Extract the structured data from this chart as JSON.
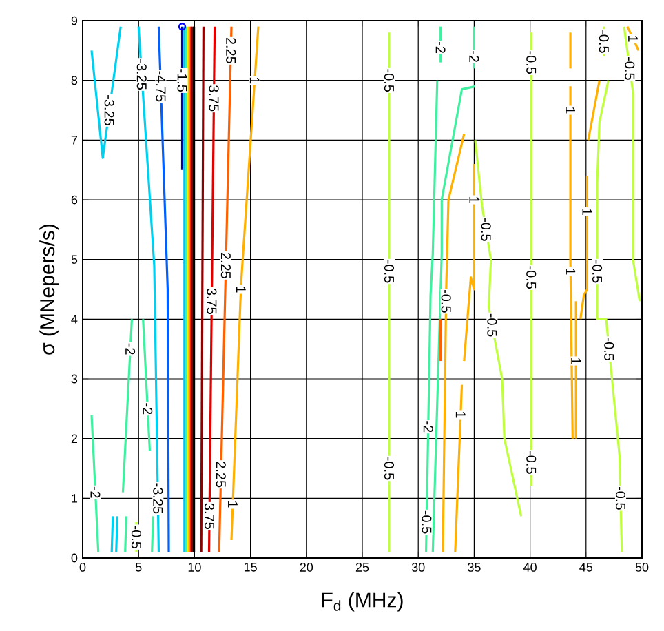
{
  "chart_data": {
    "type": "line",
    "xlabel": "F$_{d}$ (MHz)",
    "ylabel": "σ (MNepers/s)",
    "xlim": [
      0,
      50
    ],
    "ylim": [
      0,
      9
    ],
    "xticks": [
      0,
      5,
      10,
      15,
      20,
      25,
      30,
      35,
      40,
      45,
      50
    ],
    "yticks": [
      0,
      1,
      2,
      3,
      4,
      5,
      6,
      7,
      8,
      9
    ],
    "grid": true,
    "series": [
      {
        "color": "#00d0f0",
        "x": [
          0.8,
          1.8,
          3.4
        ],
        "values": [
          8.5,
          6.7,
          8.9
        ]
      },
      {
        "color": "#00d0f0",
        "x": [
          5.0,
          6.4,
          6.8
        ],
        "values": [
          8.9,
          4.9,
          0.1
        ]
      },
      {
        "color": "#0060ff",
        "x": [
          6.8,
          7.6,
          7.7
        ],
        "values": [
          8.9,
          4.5,
          0.1
        ]
      },
      {
        "color": "#0000c0",
        "x": [
          8.9,
          8.9
        ],
        "values": [
          8.9,
          6.5
        ]
      },
      {
        "color": "#00c0ff",
        "x": [
          9.1,
          9.1
        ],
        "values": [
          8.9,
          0.1
        ]
      },
      {
        "color": "#40f0a0",
        "x": [
          9.25,
          9.25
        ],
        "values": [
          8.9,
          0.1
        ]
      },
      {
        "color": "#f0f000",
        "x": [
          9.4,
          9.4
        ],
        "values": [
          8.9,
          0.1
        ]
      },
      {
        "color": "#ffa000",
        "x": [
          9.55,
          9.55
        ],
        "values": [
          8.9,
          0.1
        ]
      },
      {
        "color": "#ff2000",
        "x": [
          9.7,
          9.7
        ],
        "values": [
          8.9,
          0.1
        ]
      },
      {
        "color": "#900000",
        "x": [
          9.82,
          9.82
        ],
        "values": [
          8.9,
          0.1
        ]
      },
      {
        "color": "#000000",
        "x": [
          9.95,
          9.95
        ],
        "values": [
          8.9,
          0.1
        ]
      },
      {
        "color": "#900000",
        "x": [
          10.8,
          10.6
        ],
        "values": [
          8.9,
          0.1
        ]
      },
      {
        "color": "#e00000",
        "x": [
          11.8,
          11.3
        ],
        "values": [
          8.9,
          0.1
        ]
      },
      {
        "color": "#ff6000",
        "x": [
          13.3,
          12.2
        ],
        "values": [
          8.9,
          0.1
        ]
      },
      {
        "color": "#ffb000",
        "x": [
          15.7,
          14.2,
          14.1,
          13.3
        ],
        "values": [
          8.9,
          4.7,
          4.3,
          0.3
        ]
      },
      {
        "color": "#40f0a0",
        "x": [
          0.8,
          1.4
        ],
        "values": [
          2.4,
          0.1
        ]
      },
      {
        "color": "#40f0a0",
        "x": [
          4.4,
          3.6
        ],
        "values": [
          4.0,
          1.1
        ]
      },
      {
        "color": "#40f0a0",
        "x": [
          5.4,
          6.0
        ],
        "values": [
          4.0,
          1.8
        ]
      },
      {
        "color": "#00d0f0",
        "x": [
          2.7,
          2.6
        ],
        "values": [
          0.7,
          0.1
        ]
      },
      {
        "color": "#00d0f0",
        "x": [
          3.1,
          3.0
        ],
        "values": [
          0.7,
          0.1
        ]
      },
      {
        "color": "#40f0a0",
        "x": [
          3.9,
          3.8
        ],
        "values": [
          0.7,
          0.1
        ]
      },
      {
        "color": "#c0ff40",
        "x": [
          4.8,
          4.8
        ],
        "values": [
          0.6,
          0.1
        ]
      },
      {
        "color": "#40f0a0",
        "x": [
          6.3,
          6.2
        ],
        "values": [
          0.7,
          0.1
        ]
      },
      {
        "color": "#c0ff40",
        "x": [
          27.4,
          27.4
        ],
        "values": [
          8.8,
          0.1
        ]
      },
      {
        "color": "#40f0a0",
        "x": [
          32.0,
          32.0
        ],
        "values": [
          8.9,
          8.3
        ]
      },
      {
        "color": "#40f0a0",
        "x": [
          31.7,
          31.3,
          31.1,
          30.7
        ],
        "values": [
          8.0,
          5.1,
          4.4,
          0.1
        ]
      },
      {
        "color": "#40f0a0",
        "x": [
          35.0,
          35.0
        ],
        "values": [
          8.9,
          8.2
        ]
      },
      {
        "color": "#40f0a0",
        "x": [
          35.1,
          33.9,
          32.1,
          32.1,
          31.3
        ],
        "values": [
          7.9,
          7.85,
          6.0,
          5.1,
          0.1
        ]
      },
      {
        "color": "#ffb000",
        "x": [
          34.1,
          32.7,
          32.5,
          32.2
        ],
        "values": [
          7.1,
          6.0,
          4.5,
          0.1
        ]
      },
      {
        "color": "#c0ff40",
        "x": [
          35.1,
          35.7,
          36.5,
          36.3,
          37.5,
          37.7,
          39.2
        ],
        "values": [
          7.0,
          5.9,
          5.0,
          4.2,
          3.0,
          2.0,
          0.7
        ]
      },
      {
        "color": "#ffb000",
        "x": [
          35.0,
          35.0,
          34.7,
          34.1
        ],
        "values": [
          6.6,
          4.5,
          4.7,
          3.3
        ]
      },
      {
        "color": "#ffb000",
        "x": [
          33.9,
          33.3
        ],
        "values": [
          2.9,
          0.1
        ]
      },
      {
        "color": "#ff6000",
        "x": [
          32.0,
          32.0
        ],
        "values": [
          4.0,
          3.3
        ]
      },
      {
        "color": "#c0ff40",
        "x": [
          40.1,
          40.1
        ],
        "values": [
          8.8,
          1.2
        ]
      },
      {
        "color": "#ffb000",
        "x": [
          43.6,
          43.6
        ],
        "values": [
          8.8,
          8.2
        ]
      },
      {
        "color": "#ffb000",
        "x": [
          43.6,
          43.6,
          43.8
        ],
        "values": [
          7.9,
          5.0,
          2.0
        ]
      },
      {
        "color": "#ffb000",
        "x": [
          44.1,
          44.1
        ],
        "values": [
          4.3,
          2.0
        ]
      },
      {
        "color": "#c0ff40",
        "x": [
          46.6,
          46.6
        ],
        "values": [
          8.9,
          8.4
        ]
      },
      {
        "color": "#c0ff40",
        "x": [
          47.0,
          46.2,
          46.0,
          46.0,
          46.8,
          48.0,
          48.2
        ],
        "values": [
          8.0,
          7.3,
          6.3,
          4.0,
          4.0,
          1.7,
          0.1
        ]
      },
      {
        "color": "#ffb000",
        "x": [
          46.2,
          45.2
        ],
        "values": [
          8.0,
          7.0
        ]
      },
      {
        "color": "#ffb000",
        "x": [
          45.1,
          45.1,
          44.8,
          44.5
        ],
        "values": [
          6.4,
          4.5,
          4.4,
          4.0
        ]
      },
      {
        "color": "#c0ff40",
        "x": [
          48.4,
          49.2,
          49.2,
          49.8
        ],
        "values": [
          8.9,
          7.8,
          5.0,
          4.3
        ]
      },
      {
        "color": "#ffb000",
        "x": [
          48.7,
          49.7
        ],
        "values": [
          8.9,
          8.5
        ]
      },
      {
        "type": "scatter",
        "marker": "circle",
        "color": "#0000ff",
        "x": [
          8.9
        ],
        "values": [
          8.9
        ]
      }
    ],
    "annotations": [
      {
        "text": "-3.25",
        "x": 2.38,
        "y": 7.5
      },
      {
        "text": "-3.25",
        "x": 5.28,
        "y": 8.1
      },
      {
        "text": "-4.75",
        "x": 6.98,
        "y": 7.9
      },
      {
        "text": "-1.5",
        "x": 8.9,
        "y": 8.0
      },
      {
        "text": "3.75",
        "x": 11.73,
        "y": 7.7
      },
      {
        "text": "2.25",
        "x": 13.25,
        "y": 8.5
      },
      {
        "text": "2.25",
        "x": 12.8,
        "y": 4.9
      },
      {
        "text": "3.75",
        "x": 11.54,
        "y": 4.3
      },
      {
        "text": "2.25",
        "x": 12.36,
        "y": 1.4
      },
      {
        "text": "3.75",
        "x": 11.33,
        "y": 0.7
      },
      {
        "text": "1",
        "x": 13.42,
        "y": 0.9
      },
      {
        "text": "1",
        "x": 15.38,
        "y": 8.0
      },
      {
        "text": "1",
        "x": 14.15,
        "y": 4.5
      },
      {
        "text": "-2",
        "x": 1.14,
        "y": 1.1
      },
      {
        "text": "-2",
        "x": 5.81,
        "y": 2.5
      },
      {
        "text": "-2",
        "x": 4.26,
        "y": 3.5
      },
      {
        "text": "-3.25",
        "x": 6.73,
        "y": 1.0
      },
      {
        "text": "-0.5",
        "x": 4.8,
        "y": 0.35
      },
      {
        "text": "-0.5",
        "x": 27.4,
        "y": 8.0
      },
      {
        "text": "-0.5",
        "x": 27.4,
        "y": 4.8
      },
      {
        "text": "-0.5",
        "x": 27.4,
        "y": 1.5
      },
      {
        "text": "-2",
        "x": 32.0,
        "y": 8.55
      },
      {
        "text": "-2",
        "x": 35.0,
        "y": 8.4
      },
      {
        "text": "-0.5",
        "x": 36.06,
        "y": 5.5
      },
      {
        "text": "1",
        "x": 35.0,
        "y": 6.0
      },
      {
        "text": "-0.5",
        "x": 40.1,
        "y": 8.3
      },
      {
        "text": "-0.5",
        "x": 40.1,
        "y": 4.7
      },
      {
        "text": "-0.5",
        "x": 36.6,
        "y": 3.9
      },
      {
        "text": "-0.5",
        "x": 40.1,
        "y": 1.6
      },
      {
        "text": "1",
        "x": 43.6,
        "y": 7.5
      },
      {
        "text": "1",
        "x": 43.61,
        "y": 4.8
      },
      {
        "text": "1",
        "x": 44.1,
        "y": 3.3
      },
      {
        "text": "-0.5",
        "x": 46.6,
        "y": 8.65
      },
      {
        "text": "1",
        "x": 45.1,
        "y": 5.8
      },
      {
        "text": "-0.5",
        "x": 46.0,
        "y": 4.8
      },
      {
        "text": "-0.5",
        "x": 47.06,
        "y": 3.5
      },
      {
        "text": "-0.5",
        "x": 48.09,
        "y": 1.0
      },
      {
        "text": "1",
        "x": 49.2,
        "y": 8.7
      },
      {
        "text": "-0.5",
        "x": 48.91,
        "y": 8.2
      },
      {
        "text": "-2",
        "x": 30.9,
        "y": 2.2
      },
      {
        "text": "-0.5",
        "x": 32.49,
        "y": 4.3
      },
      {
        "text": "-0.5",
        "x": 30.75,
        "y": 0.6
      },
      {
        "text": "1",
        "x": 33.79,
        "y": 2.4
      }
    ]
  }
}
